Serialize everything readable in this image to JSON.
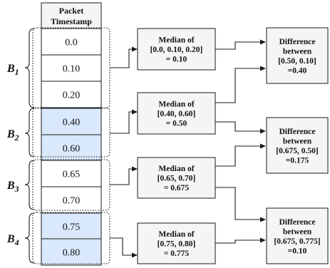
{
  "column_header": [
    "Packet",
    "Timestamp"
  ],
  "colors": {
    "white_cell": "#ffffff",
    "blue_cell": "#dae8fc",
    "box_fill": "#f5f5f5",
    "line": "#1a1a1a"
  },
  "timestamps": [
    {
      "value": "0.0",
      "shade": "white"
    },
    {
      "value": "0.10",
      "shade": "white"
    },
    {
      "value": "0.20",
      "shade": "white"
    },
    {
      "value": "0.40",
      "shade": "blue"
    },
    {
      "value": "0.60",
      "shade": "blue"
    },
    {
      "value": "0.65",
      "shade": "white"
    },
    {
      "value": "0.70",
      "shade": "white"
    },
    {
      "value": "0.75",
      "shade": "blue"
    },
    {
      "value": "0.80",
      "shade": "blue"
    }
  ],
  "batches": [
    {
      "letter": "B",
      "sub": "1"
    },
    {
      "letter": "B",
      "sub": "2"
    },
    {
      "letter": "B",
      "sub": "3"
    },
    {
      "letter": "B",
      "sub": "4"
    }
  ],
  "medians": [
    {
      "lines": [
        "Median of",
        "[0.0, 0.10, 0.20]",
        "= 0.10"
      ]
    },
    {
      "lines": [
        "Median of",
        "[0.40, 0.60]",
        "= 0.50"
      ]
    },
    {
      "lines": [
        "Median of",
        "[0.65, 0.70]",
        "= 0.675"
      ]
    },
    {
      "lines": [
        "Median of",
        "[0.75, 0.80]",
        "= 0.775"
      ]
    }
  ],
  "differences": [
    {
      "lines": [
        "Difference",
        "between",
        "[0.50, 0.10]",
        "=0.40"
      ]
    },
    {
      "lines": [
        "Difference",
        "between",
        "[0.675, 0.50]",
        "=0.175"
      ]
    },
    {
      "lines": [
        "Difference",
        "between",
        "[0.675, 0.775]",
        "=0.10"
      ]
    }
  ]
}
